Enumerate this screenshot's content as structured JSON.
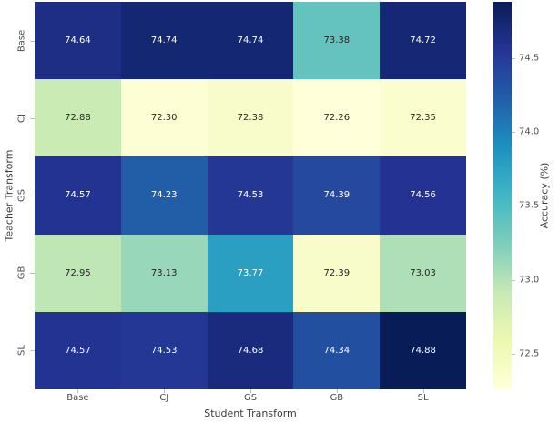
{
  "chart_data": {
    "type": "heatmap",
    "xlabel": "Student Transform",
    "ylabel": "Teacher Transform",
    "x_categories": [
      "Base",
      "CJ",
      "GS",
      "GB",
      "SL"
    ],
    "y_categories": [
      "Base",
      "CJ",
      "GS",
      "GB",
      "SL"
    ],
    "values": [
      [
        74.64,
        74.74,
        74.74,
        73.38,
        74.72
      ],
      [
        72.88,
        72.3,
        72.38,
        72.26,
        72.35
      ],
      [
        74.57,
        74.23,
        74.53,
        74.39,
        74.56
      ],
      [
        72.95,
        73.13,
        73.77,
        72.39,
        73.03
      ],
      [
        74.57,
        74.53,
        74.68,
        74.34,
        74.88
      ]
    ],
    "value_format_decimals": 2,
    "vmin": 72.26,
    "vmax": 74.88,
    "colorbar": {
      "label": "Accuracy (%)",
      "ticks": [
        72.5,
        73.0,
        73.5,
        74.0,
        74.5
      ]
    },
    "colormap": {
      "name": "YlGnBu",
      "stops": [
        "#ffffd9",
        "#edf8b1",
        "#c7e9b4",
        "#7fcdbb",
        "#41b6c4",
        "#1d91c0",
        "#225ea8",
        "#253494",
        "#081d58"
      ]
    },
    "annotation_colors": {
      "on_dark": "#ffffff",
      "on_light": "#262626"
    },
    "grid": false,
    "legend_position": "right-colorbar"
  }
}
